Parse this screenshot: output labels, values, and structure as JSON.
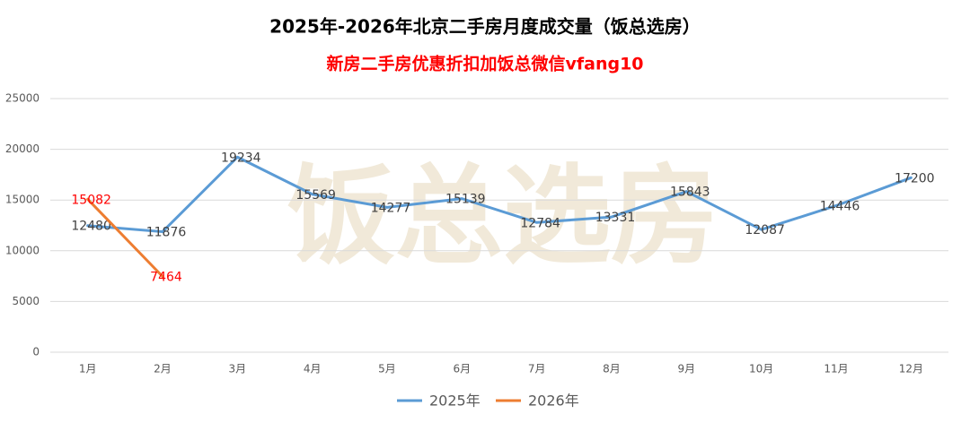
{
  "chart_data": {
    "type": "line",
    "title": "2025年-2026年北京二手房月度成交量（饭总选房）",
    "subtitle": "新房二手房优惠折扣加饭总微信vfang10",
    "watermark": "饭总选房",
    "categories": [
      "1月",
      "2月",
      "3月",
      "4月",
      "5月",
      "6月",
      "7月",
      "8月",
      "9月",
      "10月",
      "11月",
      "12月"
    ],
    "series": [
      {
        "name": "2025年",
        "color": "#5b9bd5",
        "label_color": "#404040",
        "values": [
          12480,
          11876,
          19234,
          15569,
          14277,
          15139,
          12784,
          13331,
          15843,
          12087,
          14446,
          17200
        ]
      },
      {
        "name": "2026年",
        "color": "#ed7d31",
        "label_color": "#ff0000",
        "values": [
          15082,
          7464,
          null,
          null,
          null,
          null,
          null,
          null,
          null,
          null,
          null,
          null
        ]
      }
    ],
    "ylim": [
      0,
      25000
    ],
    "yticks": [
      0,
      5000,
      10000,
      15000,
      20000,
      25000
    ],
    "grid": true
  }
}
